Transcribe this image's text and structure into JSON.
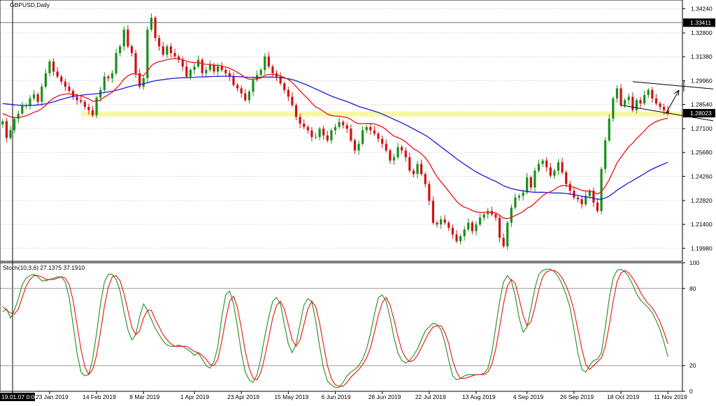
{
  "window": {
    "title": "GBPUSD,Daily",
    "indicator_label": "Stoch(10,3,6) 27.1375 37.1910"
  },
  "colors": {
    "up_candle": "#1a8f1a",
    "down_candle": "#d01010",
    "ma_fast": "#ee1111",
    "ma_slow": "#1a1adc",
    "support_zone": "#f7f7a6",
    "stoch_main": "#1f8f1f",
    "stoch_signal": "#ee1111"
  },
  "chart_data": [
    {
      "type": "candlestick",
      "symbol": "GBPUSD",
      "timeframe": "Daily",
      "ylim": [
        1.192,
        1.3476
      ],
      "y_ticks": [
        "1.34240",
        "1.32800",
        "1.31380",
        "1.29960",
        "1.28540",
        "1.27100",
        "1.25680",
        "1.24260",
        "1.22820",
        "1.21400",
        "1.19980"
      ],
      "price_marks": {
        "level_line": "1.33411",
        "current_price": "1.28023"
      },
      "support_zone": [
        1.2782,
        1.2812
      ],
      "x_labels": [
        "19.01.07 0:00",
        "23 Jan 2019",
        "14 Feb 2019",
        "8 Mar 2019",
        "1 Apr 2019",
        "23 Apr 2019",
        "15 May 2019",
        "6 Jun 2019",
        "28 Jun 2019",
        "22 Jul 2019",
        "13 Aug 2019",
        "4 Sep 2019",
        "26 Sep 2019",
        "18 Oct 2019",
        "11 Nov 2019"
      ],
      "closes": [
        1.2755,
        1.2655,
        1.27,
        1.2768,
        1.28,
        1.2845,
        1.285,
        1.289,
        1.2915,
        1.287,
        1.296,
        1.304,
        1.311,
        1.305,
        1.302,
        1.299,
        1.296,
        1.2935,
        1.29,
        1.288,
        1.287,
        1.284,
        1.282,
        1.279,
        1.2895,
        1.294,
        1.302,
        1.301,
        1.304,
        1.316,
        1.32,
        1.33,
        1.32,
        1.316,
        1.304,
        1.296,
        1.301,
        1.33,
        1.337,
        1.325,
        1.32,
        1.315,
        1.32,
        1.316,
        1.314,
        1.312,
        1.308,
        1.302,
        1.306,
        1.308,
        1.312,
        1.304,
        1.306,
        1.309,
        1.305,
        1.308,
        1.306,
        1.304,
        1.302,
        1.297,
        1.295,
        1.292,
        1.288,
        1.293,
        1.3,
        1.303,
        1.306,
        1.314,
        1.308,
        1.304,
        1.302,
        1.298,
        1.294,
        1.29,
        1.285,
        1.278,
        1.274,
        1.272,
        1.27,
        1.266,
        1.266,
        1.271,
        1.267,
        1.264,
        1.27,
        1.272,
        1.275,
        1.273,
        1.271,
        1.264,
        1.258,
        1.262,
        1.27,
        1.272,
        1.27,
        1.268,
        1.265,
        1.262,
        1.258,
        1.252,
        1.254,
        1.26,
        1.258,
        1.254,
        1.246,
        1.244,
        1.25,
        1.244,
        1.238,
        1.228,
        1.215,
        1.214,
        1.217,
        1.215,
        1.212,
        1.208,
        1.204,
        1.207,
        1.211,
        1.215,
        1.21,
        1.214,
        1.218,
        1.22,
        1.222,
        1.22,
        1.218,
        1.206,
        1.201,
        1.215,
        1.224,
        1.23,
        1.231,
        1.233,
        1.242,
        1.236,
        1.246,
        1.25,
        1.252,
        1.248,
        1.243,
        1.246,
        1.251,
        1.245,
        1.238,
        1.234,
        1.23,
        1.229,
        1.226,
        1.231,
        1.234,
        1.227,
        1.222,
        1.247,
        1.264,
        1.277,
        1.289,
        1.295,
        1.285,
        1.288,
        1.29,
        1.282,
        1.288,
        1.286,
        1.291,
        1.294,
        1.289,
        1.286,
        1.284,
        1.282,
        1.28
      ],
      "series": [
        {
          "name": "MA fast",
          "values": [
            1.28,
            1.279,
            1.278,
            1.2776,
            1.2776,
            1.2781,
            1.2786,
            1.2796,
            1.2808,
            1.2815,
            1.2829,
            1.285,
            1.2875,
            1.2891,
            1.2903,
            1.2911,
            1.2916,
            1.2917,
            1.2915,
            1.291,
            1.2905,
            1.2897,
            1.2887,
            1.2873,
            1.2874,
            1.2881,
            1.2898,
            1.2912,
            1.2927,
            1.295,
            1.2974,
            1.3006,
            1.3024,
            1.3036,
            1.3037,
            1.3029,
            1.3027,
            1.3052,
            1.3085,
            1.3101,
            1.311,
            1.3113,
            1.3122,
            1.3125,
            1.3127,
            1.3126,
            1.3121,
            1.3111,
            1.3106,
            1.3103,
            1.3104,
            1.3097,
            1.3093,
            1.3093,
            1.3088,
            1.3087,
            1.3083,
            1.3077,
            1.307,
            1.3058,
            1.3045,
            1.303,
            1.3012,
            1.3004,
            1.3004,
            1.3007,
            1.3012,
            1.3028,
            1.3033,
            1.3033,
            1.3031,
            1.3024,
            1.3014,
            1.3003,
            1.2985,
            1.2961,
            1.2934,
            1.2911,
            1.2888,
            1.2862,
            1.284,
            1.2828,
            1.2813,
            1.2796,
            1.2789,
            1.2785,
            1.2784,
            1.2781,
            1.2776,
            1.2765,
            1.2748,
            1.2739,
            1.274,
            1.2741,
            1.2741,
            1.2738,
            1.2731,
            1.272,
            1.2705,
            1.2683,
            1.2666,
            1.2657,
            1.2646,
            1.2632,
            1.2611,
            1.259,
            1.2578,
            1.256,
            1.2537,
            1.2506,
            1.2463,
            1.2424,
            1.2394,
            1.2366,
            1.2337,
            1.2307,
            1.2277,
            1.2256,
            1.2242,
            1.2235,
            1.2222,
            1.2214,
            1.2212,
            1.2211,
            1.2213,
            1.2211,
            1.2208,
            1.2194,
            1.2177,
            1.2175,
            1.2181,
            1.2193,
            1.2204,
            1.2216,
            1.2236,
            1.2247,
            1.2267,
            1.2289,
            1.2311,
            1.2326,
            1.2335,
            1.2347,
            1.2363,
            1.2372,
            1.2371,
            1.2367,
            1.236,
            1.2352,
            1.2342,
            1.2339,
            1.2339,
            1.2332,
            1.2321,
            1.2335,
            1.2366,
            1.2406,
            1.2455,
            1.2506,
            1.2539,
            1.2572,
            1.2603,
            1.2624,
            1.2651,
            1.2673,
            1.2697,
            1.2722,
            1.2739,
            1.2752,
            1.2761,
            1.2768,
            1.2772
          ]
        },
        {
          "name": "MA slow",
          "values": [
            1.286,
            1.2857,
            1.2855,
            1.2852,
            1.285,
            1.2848,
            1.2847,
            1.2848,
            1.2849,
            1.2851,
            1.2854,
            1.2858,
            1.2864,
            1.287,
            1.2877,
            1.2884,
            1.2891,
            1.2897,
            1.2902,
            1.2906,
            1.2909,
            1.2912,
            1.2914,
            1.2916,
            1.2918,
            1.2921,
            1.2925,
            1.2929,
            1.2933,
            1.2938,
            1.2944,
            1.2951,
            1.2958,
            1.2964,
            1.2969,
            1.2973,
            1.2977,
            1.2983,
            1.299,
            1.2995,
            1.2999,
            1.3002,
            1.3005,
            1.3008,
            1.301,
            1.3012,
            1.3013,
            1.3014,
            1.3015,
            1.3016,
            1.3018,
            1.3018,
            1.3019,
            1.302,
            1.3021,
            1.3021,
            1.3022,
            1.3022,
            1.3022,
            1.3021,
            1.302,
            1.3019,
            1.3017,
            1.3016,
            1.3016,
            1.3016,
            1.3016,
            1.3017,
            1.3017,
            1.3017,
            1.3016,
            1.3014,
            1.3011,
            1.3007,
            1.3002,
            1.2995,
            1.2986,
            1.2977,
            1.2968,
            1.2957,
            1.2946,
            1.2936,
            1.2925,
            1.2914,
            1.2904,
            1.2895,
            1.2887,
            1.2879,
            1.2871,
            1.2862,
            1.2852,
            1.2842,
            1.2835,
            1.2828,
            1.2821,
            1.2814,
            1.2806,
            1.2797,
            1.2787,
            1.2776,
            1.2765,
            1.2755,
            1.2744,
            1.2733,
            1.2721,
            1.2708,
            1.2696,
            1.2684,
            1.2671,
            1.2656,
            1.2638,
            1.262,
            1.2602,
            1.2585,
            1.2567,
            1.2549,
            1.2531,
            1.2514,
            1.2498,
            1.2483,
            1.2467,
            1.2453,
            1.244,
            1.2428,
            1.2417,
            1.2406,
            1.2396,
            1.2383,
            1.237,
            1.2361,
            1.2354,
            1.2348,
            1.2343,
            1.2339,
            1.2337,
            1.2333,
            1.2331,
            1.2331,
            1.2331,
            1.233,
            1.2328,
            1.2327,
            1.2327,
            1.2326,
            1.2324,
            1.2321,
            1.2317,
            1.2313,
            1.2308,
            1.2304,
            1.2301,
            1.2296,
            1.229,
            1.229,
            1.2297,
            1.2309,
            1.2325,
            1.2343,
            1.2358,
            1.2373,
            1.2388,
            1.2401,
            1.2415,
            1.2428,
            1.2442,
            1.2457,
            1.2469,
            1.248,
            1.249,
            1.25,
            1.251
          ]
        }
      ],
      "annotations": [
        {
          "type": "trendline",
          "from": [
            161,
            1.299
          ],
          "to": [
            178,
            1.293
          ]
        },
        {
          "type": "trendline",
          "from": [
            158,
            1.285
          ],
          "to": [
            178,
            1.274
          ]
        }
      ]
    },
    {
      "type": "line",
      "ylim": [
        0,
        100
      ],
      "y_ticks": [
        "100",
        "80",
        "20",
        "0"
      ],
      "levels": [
        80,
        20
      ],
      "series": [
        {
          "name": "main",
          "values": [
            62,
            64,
            57,
            63,
            72,
            83,
            88,
            90,
            91,
            89,
            86,
            86,
            87,
            88,
            89,
            89,
            85,
            73,
            52,
            30,
            15,
            12,
            13,
            25,
            45,
            68,
            85,
            91,
            91,
            87,
            78,
            62,
            48,
            40,
            44,
            58,
            68,
            63,
            56,
            49,
            44,
            39,
            36,
            35,
            35,
            36,
            35,
            33,
            31,
            28,
            30,
            25,
            20,
            18,
            23,
            35,
            58,
            75,
            78,
            68,
            50,
            30,
            15,
            9,
            7,
            13,
            26,
            43,
            58,
            70,
            73,
            68,
            52,
            37,
            30,
            37,
            52,
            67,
            72,
            70,
            55,
            35,
            18,
            8,
            5,
            3,
            3,
            7,
            12,
            15,
            17,
            20,
            25,
            33,
            45,
            60,
            73,
            75,
            70,
            57,
            42,
            30,
            24,
            22,
            24,
            28,
            33,
            40,
            47,
            50,
            53,
            52,
            48,
            38,
            24,
            12,
            9,
            10,
            12,
            13,
            13,
            13,
            13,
            14,
            18,
            30,
            50,
            70,
            85,
            90,
            86,
            74,
            57,
            46,
            50,
            64,
            80,
            91,
            94,
            95,
            95,
            93,
            89,
            83,
            75,
            65,
            48,
            30,
            17,
            15,
            20,
            24,
            25,
            30,
            50,
            72,
            88,
            94,
            95,
            93,
            89,
            83,
            76,
            71,
            68,
            65,
            61,
            55,
            48,
            38,
            27
          ]
        },
        {
          "name": "signal",
          "values": [
            66,
            63,
            61,
            60,
            64,
            73,
            82,
            87,
            90,
            90,
            89,
            87,
            87,
            87,
            88,
            89,
            88,
            83,
            71,
            52,
            33,
            19,
            13,
            17,
            28,
            46,
            66,
            81,
            89,
            90,
            86,
            76,
            63,
            50,
            44,
            47,
            57,
            63,
            63,
            56,
            50,
            44,
            40,
            37,
            35,
            35,
            35,
            35,
            33,
            31,
            30,
            28,
            25,
            21,
            20,
            25,
            39,
            56,
            70,
            74,
            65,
            49,
            31,
            18,
            10,
            9,
            15,
            27,
            42,
            57,
            67,
            70,
            64,
            52,
            40,
            35,
            40,
            52,
            64,
            70,
            66,
            53,
            36,
            20,
            10,
            5,
            4,
            4,
            7,
            11,
            14,
            17,
            21,
            26,
            34,
            46,
            59,
            69,
            73,
            67,
            56,
            43,
            32,
            26,
            23,
            24,
            28,
            34,
            40,
            46,
            50,
            51,
            51,
            46,
            37,
            24,
            15,
            10,
            10,
            11,
            12,
            13,
            13,
            13,
            15,
            21,
            33,
            50,
            68,
            82,
            87,
            84,
            72,
            59,
            51,
            54,
            65,
            79,
            89,
            93,
            94,
            94,
            92,
            88,
            82,
            74,
            63,
            48,
            33,
            21,
            17,
            20,
            23,
            26,
            35,
            51,
            70,
            85,
            92,
            94,
            92,
            88,
            83,
            77,
            72,
            68,
            65,
            60,
            54,
            46,
            37
          ]
        }
      ]
    }
  ]
}
